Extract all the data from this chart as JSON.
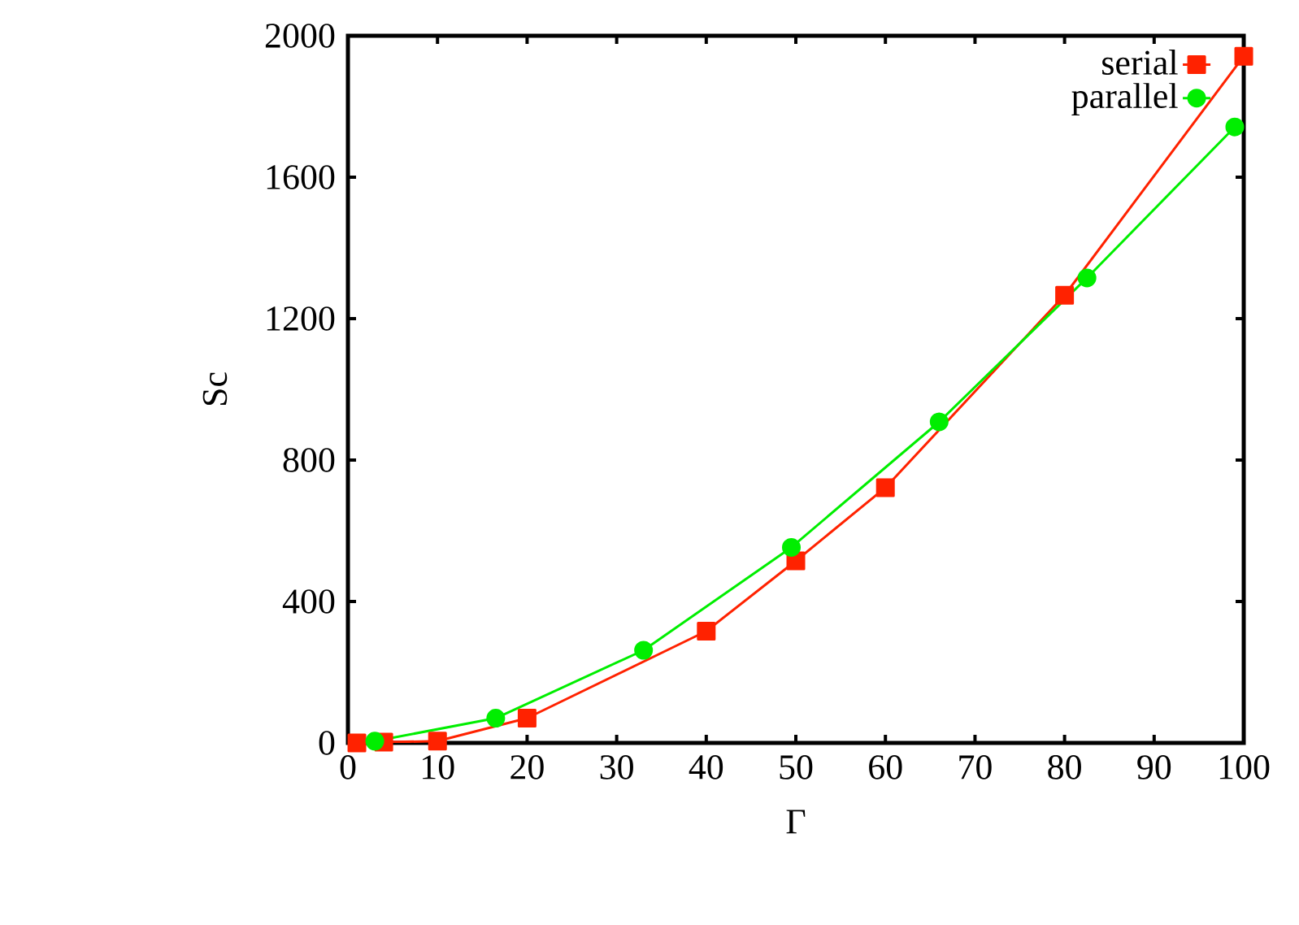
{
  "chart_data": {
    "type": "line",
    "xlabel": "Γ",
    "ylabel": "Sc",
    "xlim": [
      0,
      100
    ],
    "ylim": [
      0,
      2000
    ],
    "xticks": [
      0,
      10,
      20,
      30,
      40,
      50,
      60,
      70,
      80,
      90,
      100
    ],
    "yticks": [
      0,
      400,
      800,
      1200,
      1600,
      2000
    ],
    "legend": "top right",
    "grid": false,
    "line_style": "solid",
    "series": [
      {
        "name": "serial",
        "color": "#ff2200",
        "marker": "square",
        "x": [
          1,
          4,
          10,
          20,
          40,
          50,
          60,
          80,
          100
        ],
        "values": [
          0,
          2,
          5,
          70,
          316,
          515,
          722,
          1266,
          1942
        ]
      },
      {
        "name": "parallel",
        "color": "#00ee00",
        "marker": "circle",
        "x": [
          3,
          16.5,
          33,
          49.5,
          66,
          82.5,
          99
        ],
        "values": [
          5,
          70,
          262,
          553,
          908,
          1315,
          1742
        ]
      }
    ]
  }
}
